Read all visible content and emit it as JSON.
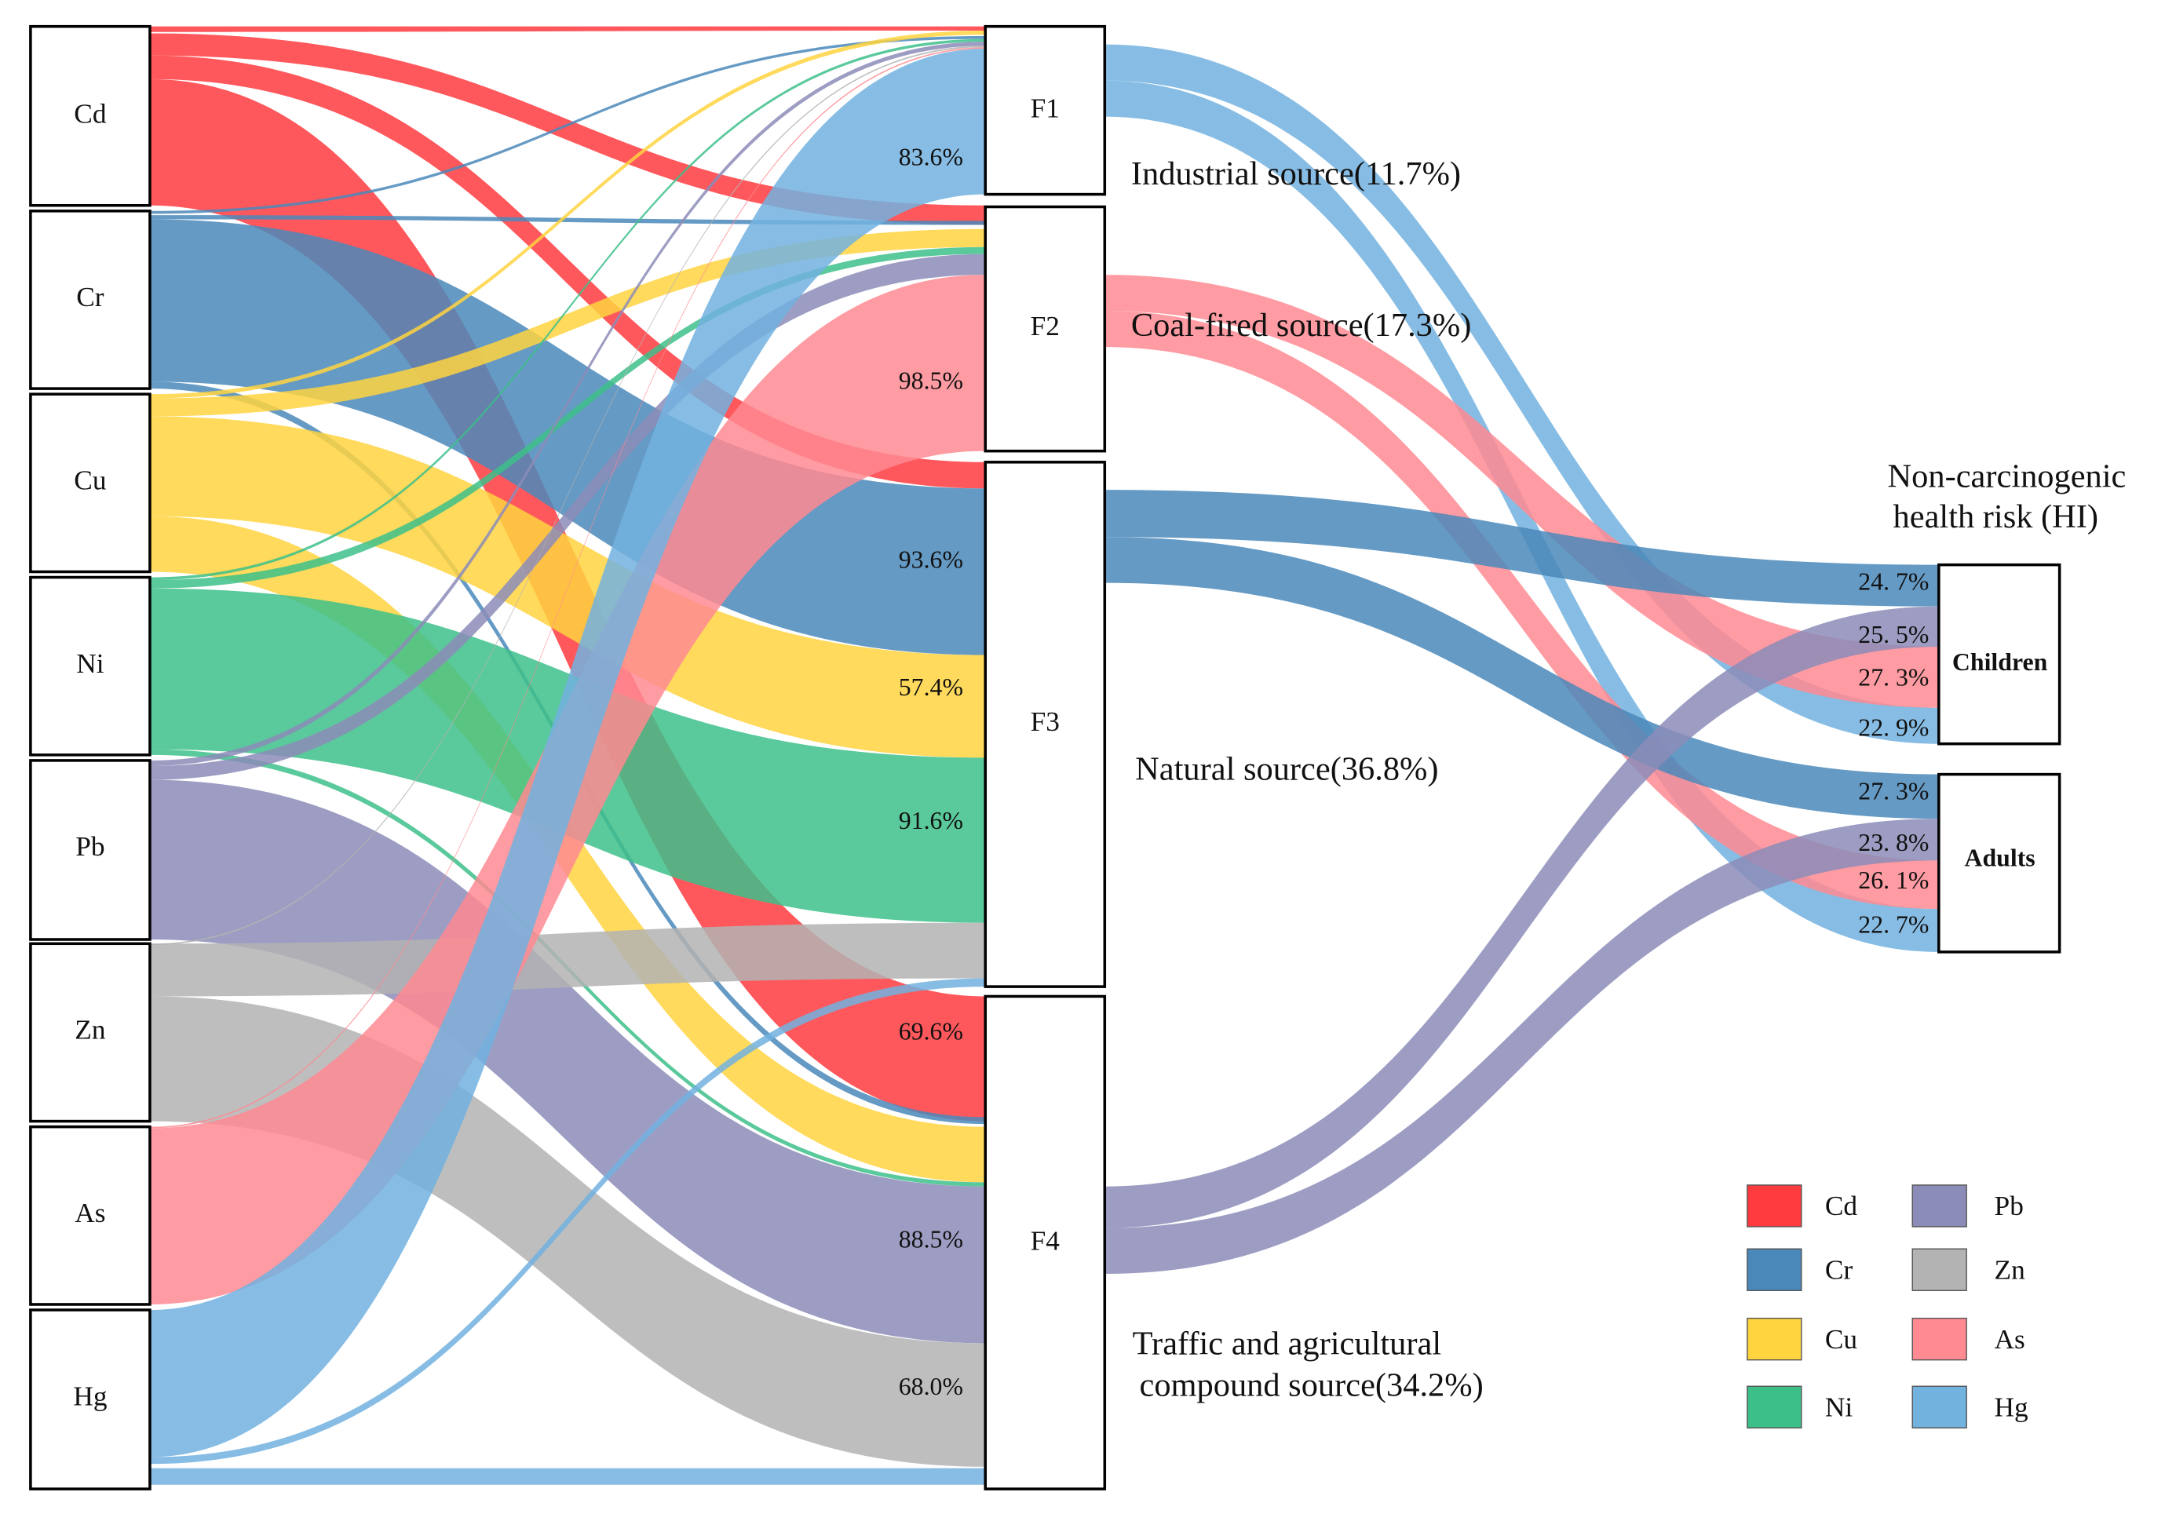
{
  "colors": {
    "Cd": "#ff3b3f",
    "Cr": "#4a88ba",
    "Cu": "#ffd43f",
    "Ni": "#3dbf8a",
    "Pb": "#8c8cb8",
    "Zn": "#b3b3b3",
    "As": "#ff8a92",
    "Hg": "#72b2df"
  },
  "chart_data": {
    "type": "sankey",
    "title": "Non-carcinogenic health risk (HI)",
    "title_lines": [
      "Non-carcinogenic",
      "health risk (HI)"
    ],
    "metals": [
      "Cd",
      "Cr",
      "Cu",
      "Ni",
      "Pb",
      "Zn",
      "As",
      "Hg"
    ],
    "factors": [
      "F1",
      "F2",
      "F3",
      "F4"
    ],
    "receptors": [
      "Children",
      "Adults"
    ],
    "factor_sources": [
      {
        "factor": "F1",
        "label": "Industrial source(11.7%)",
        "share": 11.7
      },
      {
        "factor": "F2",
        "label": "Coal-fired source(17.3%)",
        "share": 17.3
      },
      {
        "factor": "F3",
        "label": "Natural source(36.8%)",
        "share": 36.8
      },
      {
        "factor": "F4",
        "label_lines": [
          "Traffic and agricultural",
          "compound source(34.2%)"
        ],
        "share": 34.2
      }
    ],
    "flow_labels": [
      {
        "metal": "Hg",
        "factor": "F1",
        "label": "83.6%",
        "value": 83.6
      },
      {
        "metal": "As",
        "factor": "F2",
        "label": "98.5%",
        "value": 98.5
      },
      {
        "metal": "Cr",
        "factor": "F3",
        "label": "93.6%",
        "value": 93.6
      },
      {
        "metal": "Cu",
        "factor": "F3",
        "label": "57.4%",
        "value": 57.4
      },
      {
        "metal": "Ni",
        "factor": "F3",
        "label": "91.6%",
        "value": 91.6
      },
      {
        "metal": "Cd",
        "factor": "F4",
        "label": "69.6%",
        "value": 69.6
      },
      {
        "metal": "Pb",
        "factor": "F4",
        "label": "88.5%",
        "value": 88.5
      },
      {
        "metal": "Zn",
        "factor": "F4",
        "label": "68.0%",
        "value": 68.0
      }
    ],
    "receptor_flows": [
      {
        "factor": "F3",
        "receptor": "Children",
        "label": "24. 7%",
        "value": 24.7
      },
      {
        "factor": "F4",
        "receptor": "Children",
        "label": "25. 5%",
        "value": 25.5
      },
      {
        "factor": "F2",
        "receptor": "Children",
        "label": "27. 3%",
        "value": 27.3
      },
      {
        "factor": "F1",
        "receptor": "Children",
        "label": "22. 9%",
        "value": 22.9
      },
      {
        "factor": "F3",
        "receptor": "Adults",
        "label": "27. 3%",
        "value": 27.3
      },
      {
        "factor": "F4",
        "receptor": "Adults",
        "label": "23. 8%",
        "value": 23.8
      },
      {
        "factor": "F2",
        "receptor": "Adults",
        "label": "26. 1%",
        "value": 26.1
      },
      {
        "factor": "F1",
        "receptor": "Adults",
        "label": "22. 7%",
        "value": 22.7
      }
    ],
    "legend": [
      {
        "name": "Cd"
      },
      {
        "name": "Cr"
      },
      {
        "name": "Cu"
      },
      {
        "name": "Ni"
      },
      {
        "name": "Pb"
      },
      {
        "name": "Zn"
      },
      {
        "name": "As"
      },
      {
        "name": "Hg"
      }
    ]
  }
}
